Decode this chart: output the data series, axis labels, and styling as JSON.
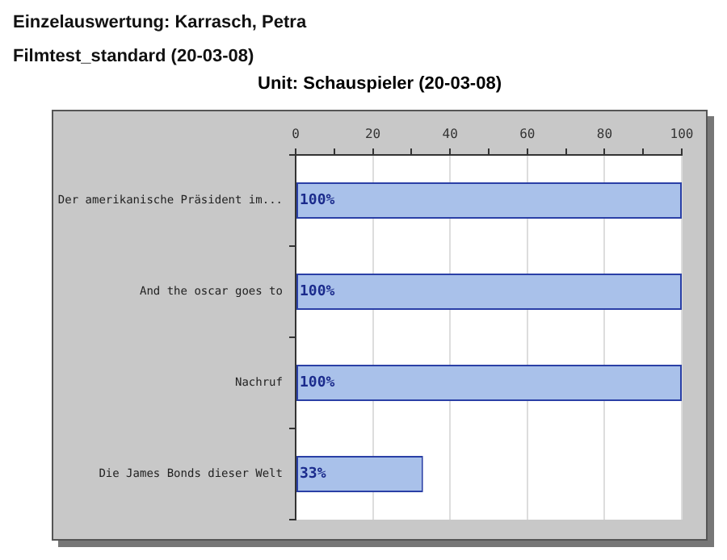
{
  "chart_data": {
    "type": "bar",
    "orientation": "horizontal",
    "title": "Unit: Schauspieler (20-03-08)",
    "annotations": [
      "Einzelauswertung: Karrasch, Petra",
      "Filmtest_standard (20-03-08)"
    ],
    "categories": [
      "Der amerikanische Präsident im...",
      "And the oscar goes to",
      "Nachruf",
      "Die James Bonds dieser Welt"
    ],
    "values": [
      100,
      100,
      100,
      33
    ],
    "value_labels": [
      "100%",
      "100%",
      "100%",
      "33%"
    ],
    "color": "#a9c1ea",
    "xlim": [
      0,
      100
    ],
    "xticks": [
      0,
      {
        "value": 10,
        "label": null
      },
      20,
      {
        "value": 30,
        "label": null
      },
      40,
      {
        "value": 50,
        "label": null
      },
      60,
      {
        "value": 70,
        "label": null
      },
      80,
      {
        "value": 90,
        "label": null
      },
      100
    ],
    "grid": "x",
    "legend": false
  }
}
